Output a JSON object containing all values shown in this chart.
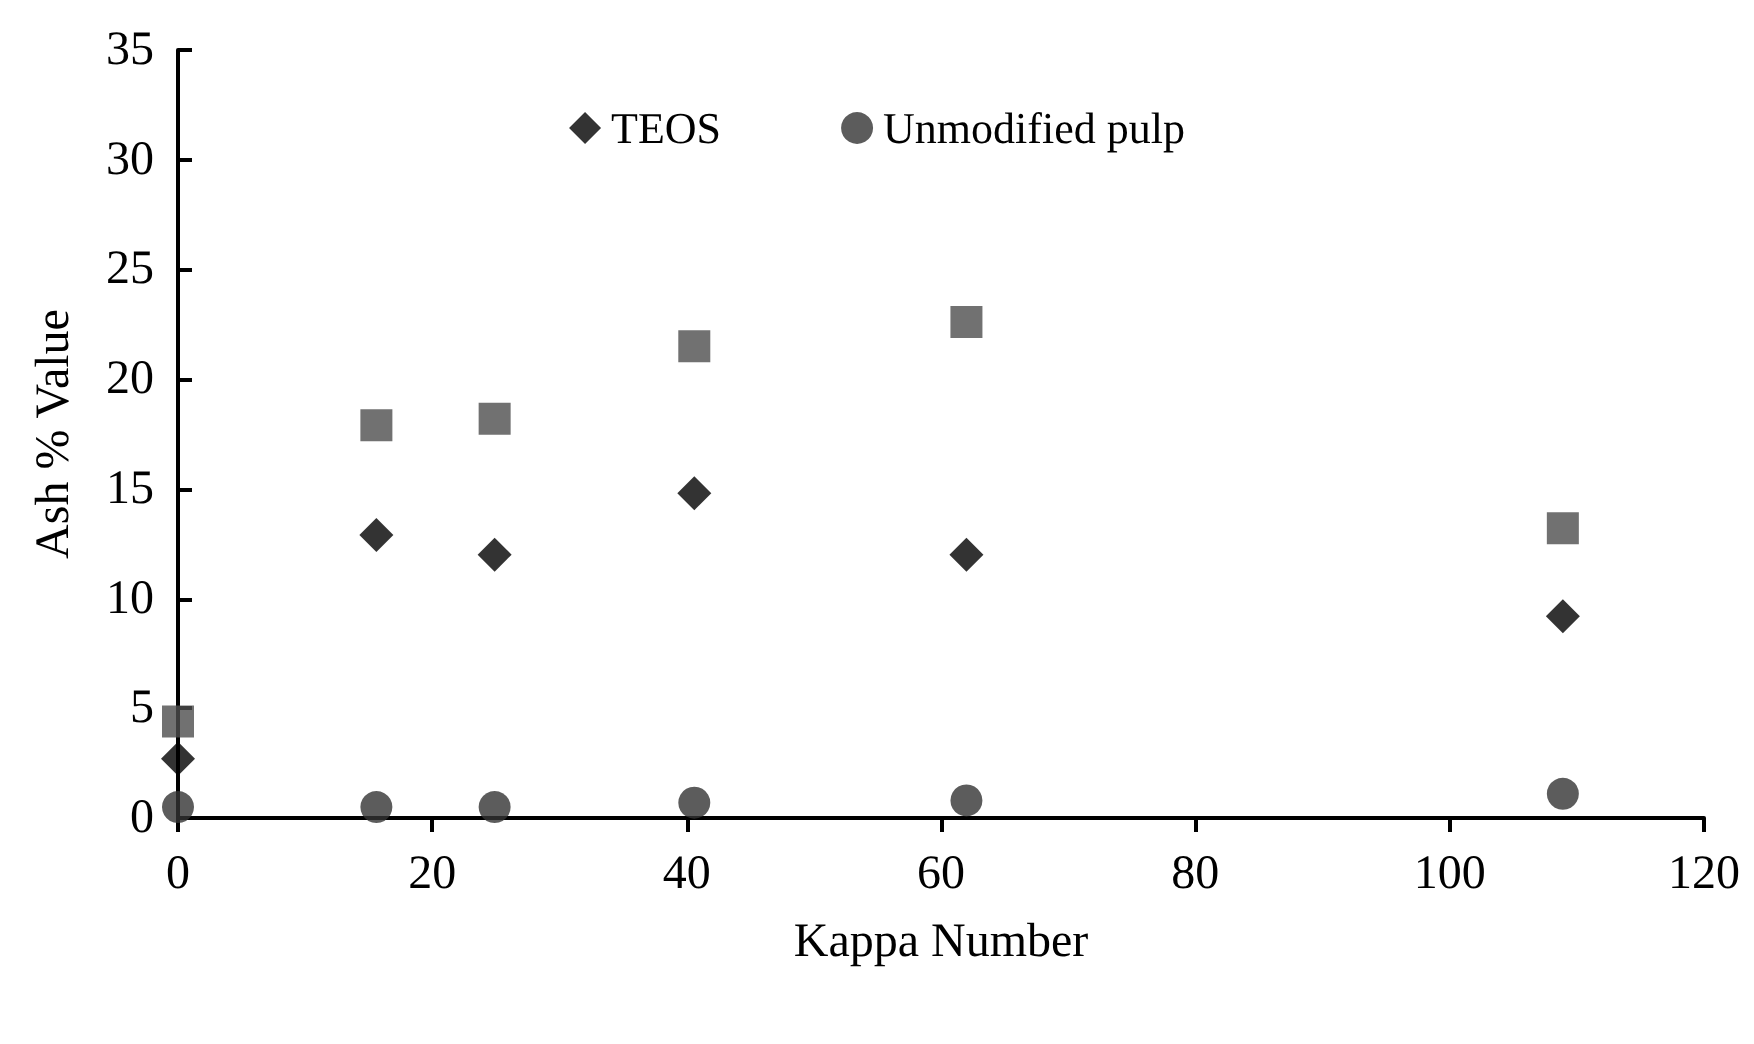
{
  "chart_data": {
    "type": "scatter",
    "xlabel": "Kappa Number",
    "ylabel": "Ash % Value",
    "x": [
      0,
      15.6,
      24.9,
      40.6,
      62,
      108.9
    ],
    "series": [
      {
        "name": "TEOS",
        "color": "#000000",
        "marker": "diamond",
        "values": [
          2.7,
          12.9,
          12.0,
          14.8,
          12.0,
          9.2
        ]
      },
      {
        "color": "#4d4d4d",
        "marker": "square",
        "values": [
          4.4,
          17.9,
          18.2,
          21.5,
          22.6,
          13.2
        ]
      },
      {
        "name": "Unmodified pulp",
        "color": "#333333",
        "marker": "circle",
        "values": [
          0.5,
          0.5,
          0.5,
          0.7,
          0.8,
          1.1
        ]
      }
    ],
    "xlim": [
      0,
      120
    ],
    "xticks": [
      0,
      20,
      40,
      60,
      80,
      100,
      120
    ],
    "ylim": [
      0,
      35
    ],
    "yticks": [
      0,
      5,
      10,
      15,
      20,
      25,
      30,
      35
    ],
    "grid": false,
    "legend": "top"
  }
}
